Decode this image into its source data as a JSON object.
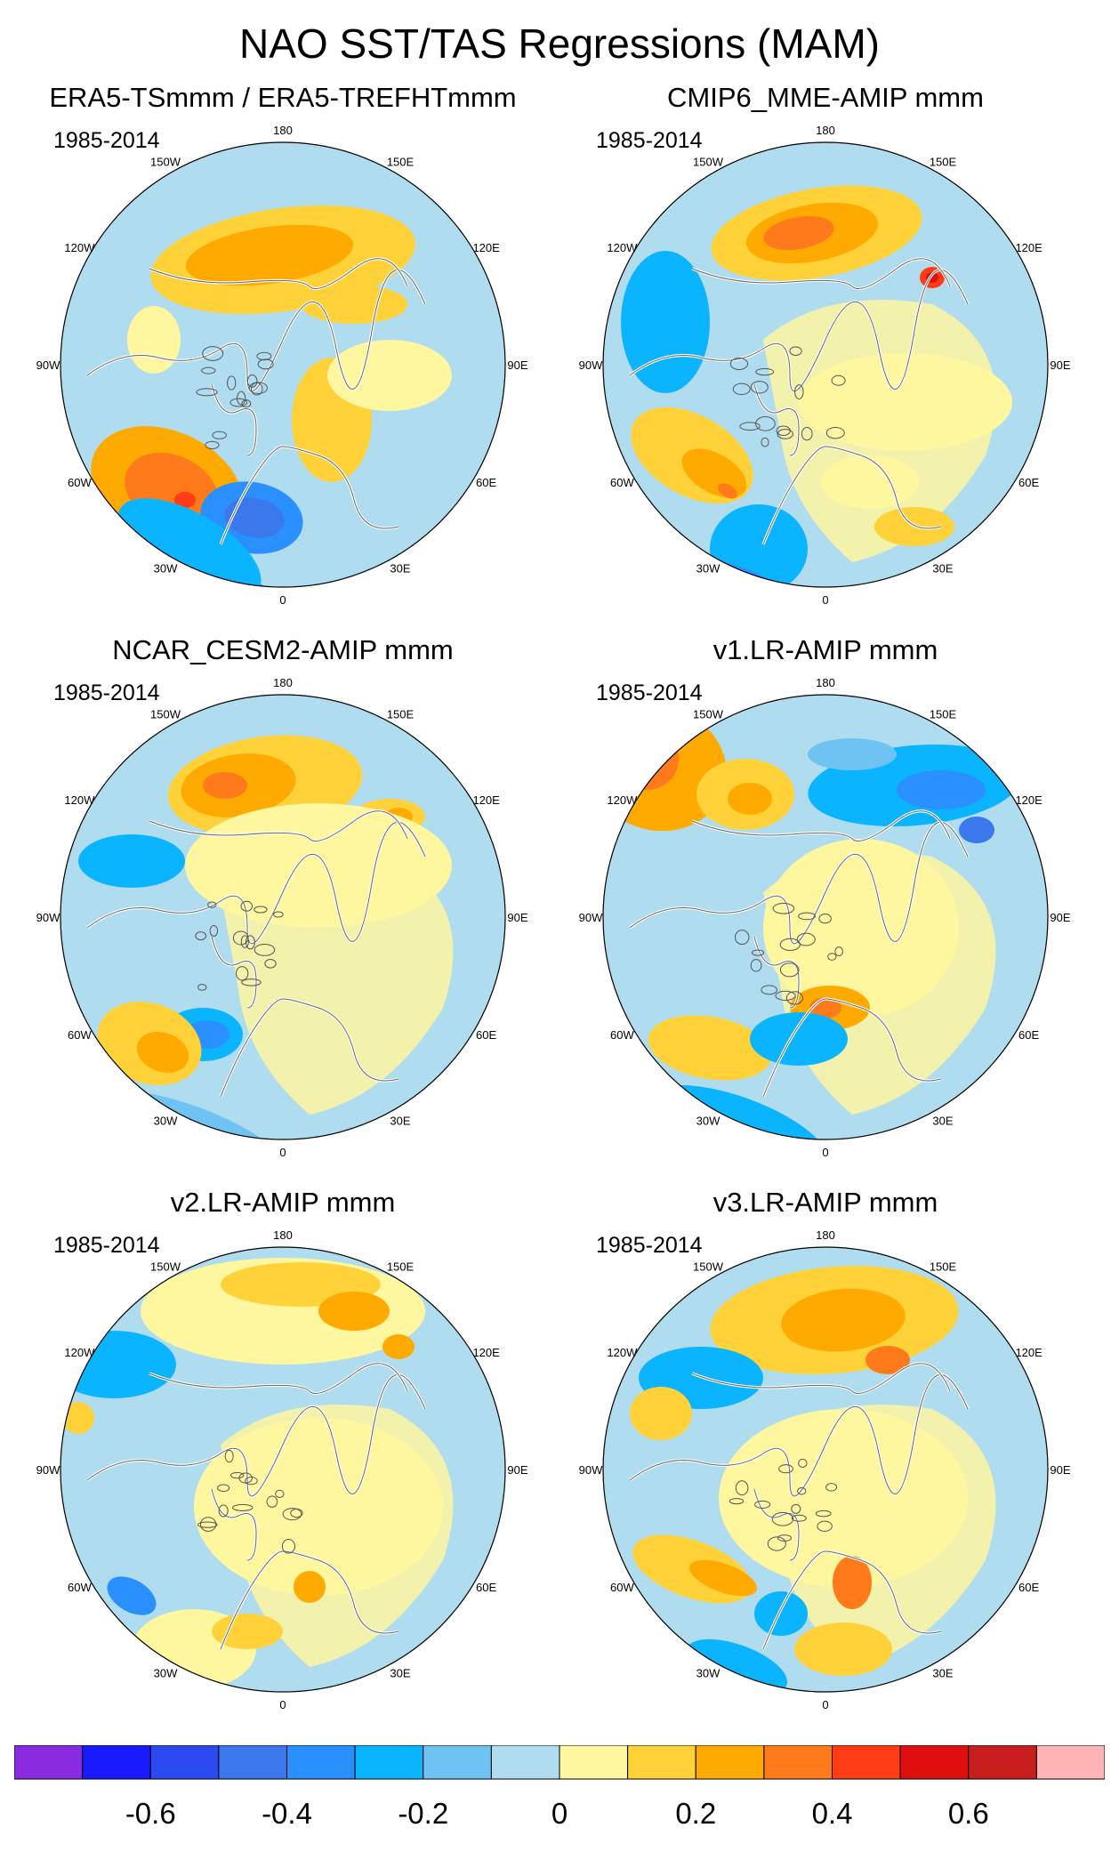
{
  "title": "NAO SST/TAS Regressions (MAM)",
  "panels": [
    {
      "title": "ERA5-TSmmm / ERA5-TREFHTmmm",
      "period": "1985-2014"
    },
    {
      "title": "CMIP6_MME-AMIP  mmm",
      "period": "1985-2014"
    },
    {
      "title": "NCAR_CESM2-AMIP  mmm",
      "period": "1985-2014"
    },
    {
      "title": "v1.LR-AMIP  mmm",
      "period": "1985-2014"
    },
    {
      "title": "v2.LR-AMIP  mmm",
      "period": "1985-2014"
    },
    {
      "title": "v3.LR-AMIP  mmm",
      "period": "1985-2014"
    }
  ],
  "longitude_labels": {
    "top": "180",
    "bottom": "0",
    "upper_left": "150W",
    "upper_right": "150E",
    "mid_upper_left": "120W",
    "mid_upper_right": "120E",
    "left": "90W",
    "right": "90E",
    "mid_lower_left": "60W",
    "mid_lower_right": "60E",
    "lower_left": "30W",
    "lower_right": "30E"
  },
  "colorbar": {
    "colors": [
      "#8a2be2",
      "#1a1aff",
      "#2b4bf0",
      "#3a78ec",
      "#2a90ff",
      "#0ab4ff",
      "#6fc3f3",
      "#b0dcf0",
      "#fff6a0",
      "#ffd23a",
      "#ffaa00",
      "#ff7a1a",
      "#ff3c14",
      "#e00f0f",
      "#c81e1e",
      "#ffb4b4"
    ],
    "tick_labels": [
      "-0.6",
      "-0.4",
      "-0.2",
      "0",
      "0.2",
      "0.4",
      "0.6"
    ]
  },
  "chart_data": {
    "type": "contour_map",
    "projection": "north polar stereographic",
    "title": "NAO SST/TAS Regressions (MAM)",
    "panels": [
      "ERA5-TSmmm / ERA5-TREFHTmmm",
      "CMIP6_MME-AMIP  mmm",
      "NCAR_CESM2-AMIP  mmm",
      "v1.LR-AMIP  mmm",
      "v2.LR-AMIP  mmm",
      "v3.LR-AMIP  mmm"
    ],
    "period": "1985-2014",
    "color_levels": [
      -0.7,
      -0.6,
      -0.5,
      -0.4,
      -0.3,
      -0.2,
      -0.1,
      0,
      0.1,
      0.2,
      0.3,
      0.4,
      0.5,
      0.6,
      0.7
    ],
    "colorbar_ticks": [
      -0.6,
      -0.4,
      -0.2,
      0,
      0.2,
      0.4,
      0.6
    ]
  }
}
